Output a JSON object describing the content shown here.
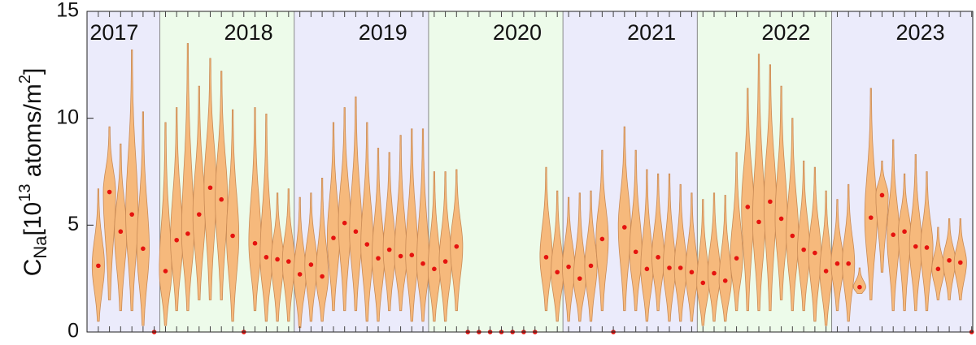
{
  "chart_data": {
    "type": "violin",
    "ylabel": {
      "symbol": "C",
      "symbol_sub": "Na",
      "open": "[10",
      "power": "13",
      "unit": " atoms/m",
      "unit_power": "2",
      "close": "]"
    },
    "year_bands": [
      2017,
      2018,
      2019,
      2020,
      2021,
      2022,
      2023
    ],
    "band_colors": [
      "#ebebfb",
      "#edfbea"
    ],
    "x": [
      2017.542,
      2017.625,
      2017.708,
      2017.792,
      2017.875,
      2017.958,
      2018.042,
      2018.125,
      2018.208,
      2018.292,
      2018.375,
      2018.458,
      2018.542,
      2018.625,
      2018.708,
      2018.792,
      2018.875,
      2018.958,
      2019.042,
      2019.125,
      2019.208,
      2019.292,
      2019.375,
      2019.458,
      2019.542,
      2019.625,
      2019.708,
      2019.792,
      2019.875,
      2019.958,
      2020.042,
      2020.125,
      2020.208,
      2020.292,
      2020.375,
      2020.458,
      2020.542,
      2020.625,
      2020.708,
      2020.792,
      2020.875,
      2020.958,
      2021.042,
      2021.125,
      2021.208,
      2021.292,
      2021.375,
      2021.458,
      2021.542,
      2021.625,
      2021.708,
      2021.792,
      2021.875,
      2021.958,
      2022.042,
      2022.125,
      2022.208,
      2022.292,
      2022.375,
      2022.458,
      2022.542,
      2022.625,
      2022.708,
      2022.792,
      2022.875,
      2022.958,
      2023.042,
      2023.125,
      2023.208,
      2023.292,
      2023.375,
      2023.458,
      2023.542,
      2023.625,
      2023.708,
      2023.792,
      2023.875,
      2023.958,
      2024.042
    ],
    "values": [
      3.1,
      6.55,
      4.7,
      5.5,
      3.9,
      0,
      2.85,
      4.3,
      4.6,
      5.5,
      6.75,
      6.2,
      4.5,
      0,
      4.15,
      3.5,
      3.4,
      3.3,
      2.7,
      3.15,
      2.6,
      4.4,
      5.1,
      4.7,
      4.1,
      3.45,
      3.85,
      3.55,
      3.6,
      3.2,
      2.95,
      3.3,
      4.0,
      0,
      0,
      0,
      0,
      0,
      0,
      0,
      3.5,
      2.8,
      3.05,
      2.5,
      3.1,
      4.35,
      0,
      4.9,
      3.75,
      2.95,
      3.5,
      3.0,
      3.0,
      2.8,
      2.3,
      2.75,
      2.4,
      3.45,
      5.85,
      5.15,
      6.1,
      5.3,
      4.5,
      3.85,
      3.7,
      2.85,
      3.2,
      3.2,
      2.1,
      5.35,
      6.4,
      4.55,
      4.7,
      4.0,
      3.95,
      2.95,
      3.35,
      3.25,
      0
    ],
    "max": [
      6.7,
      9.6,
      8.8,
      13.2,
      10.3,
      0,
      9.8,
      10.5,
      13.5,
      11.5,
      12.8,
      12.2,
      10.4,
      0,
      10.5,
      10.2,
      6.5,
      6.7,
      6.3,
      6.5,
      7.2,
      9.8,
      10.5,
      11.0,
      9.8,
      8.6,
      8.4,
      9.2,
      9.5,
      9.5,
      7.5,
      7.5,
      7.6,
      0,
      0,
      0,
      0,
      0,
      0,
      0,
      7.7,
      6.6,
      6.3,
      6.5,
      6.6,
      8.5,
      0,
      9.6,
      8.5,
      7.6,
      7.4,
      7.4,
      6.9,
      6.5,
      6.2,
      6.5,
      6.4,
      8.4,
      11.4,
      13.0,
      12.5,
      11.5,
      10.0,
      8.0,
      7.7,
      6.6,
      6.2,
      6.9,
      3.0,
      11.4,
      8.0,
      9.0,
      7.4,
      8.3,
      7.5,
      4.9,
      5.3,
      5.3,
      0
    ],
    "min": [
      0.5,
      1.5,
      1.0,
      1.0,
      0.3,
      0,
      0.3,
      1.0,
      1.0,
      1.5,
      1.5,
      1.5,
      0.5,
      0,
      1.0,
      0.5,
      0.5,
      0.5,
      0.2,
      0.5,
      0.5,
      1.0,
      1.0,
      1.0,
      0.5,
      0.5,
      1.0,
      1.0,
      0.5,
      0.5,
      0.5,
      0.5,
      1.0,
      0,
      0,
      0,
      0,
      0,
      0,
      0,
      1.0,
      0.5,
      0.5,
      0.5,
      0.5,
      1.0,
      0,
      1.0,
      1.0,
      0.5,
      1.0,
      0.5,
      0.5,
      0.5,
      0.3,
      0.5,
      0.5,
      1.0,
      1.0,
      1.0,
      1.0,
      1.5,
      1.0,
      1.0,
      0.5,
      0.3,
      1.0,
      0.5,
      1.8,
      1.5,
      2.8,
      1.0,
      1.0,
      1.0,
      1.0,
      1.5,
      1.5,
      1.5,
      0
    ],
    "violin_color": "#f6b97c",
    "violin_edge": "#c98a55",
    "median_color": "#e5130f",
    "xlim": [
      2017.458,
      2024.05
    ],
    "ylim": [
      0,
      15
    ],
    "yticks": [
      0,
      5,
      10,
      15
    ]
  }
}
